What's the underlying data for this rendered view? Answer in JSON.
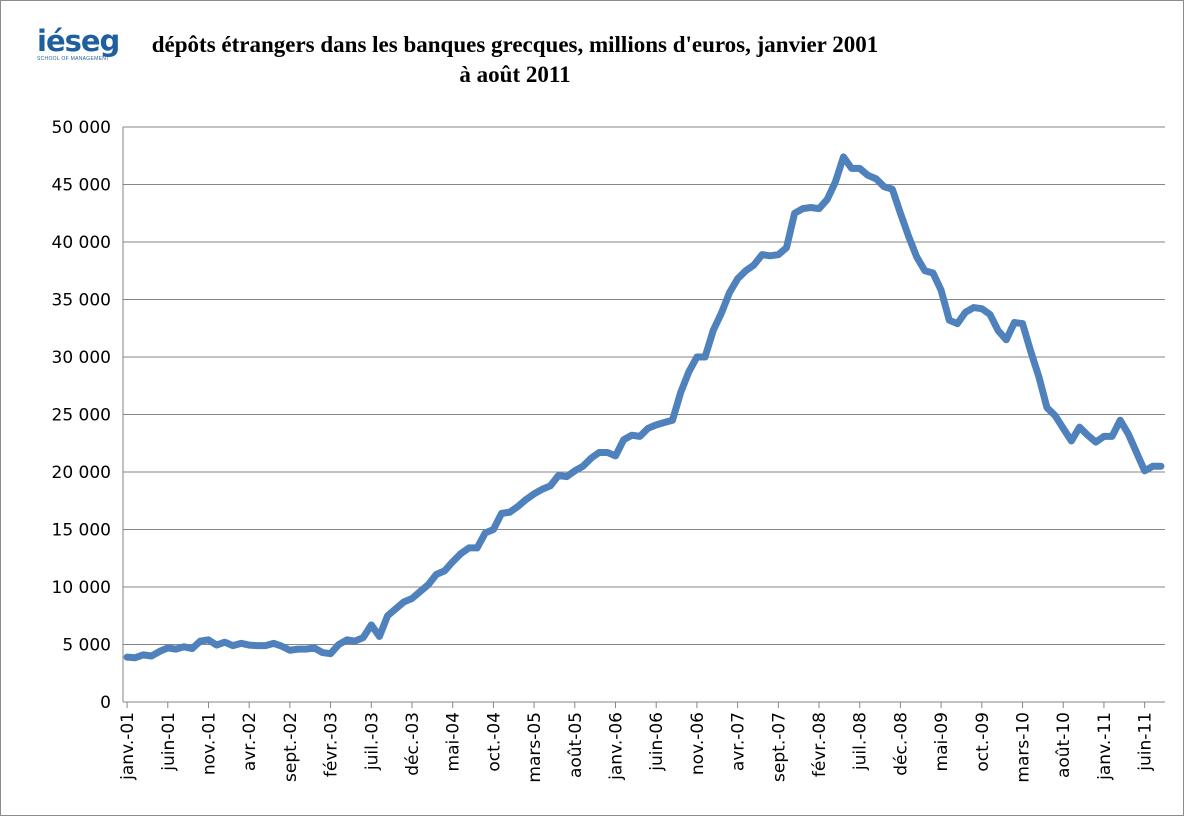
{
  "logo": {
    "name": "iéseg",
    "tagline": "SCHOOL OF MANAGEMENT"
  },
  "chart_data": {
    "type": "line",
    "title": "dépôts étrangers  dans les banques grecques, millions d'euros, janvier 2001 à août 2011",
    "categories": [
      "janv.-01",
      null,
      null,
      null,
      null,
      "juin-01",
      null,
      null,
      null,
      null,
      "nov.-01",
      null,
      null,
      null,
      null,
      "avr.-02",
      null,
      null,
      null,
      null,
      "sept.-02",
      null,
      null,
      null,
      null,
      "févr.-03",
      null,
      null,
      null,
      null,
      "juil.-03",
      null,
      null,
      null,
      null,
      "déc.-03",
      null,
      null,
      null,
      null,
      "mai-04",
      null,
      null,
      null,
      null,
      "oct.-04",
      null,
      null,
      null,
      null,
      "mars-05",
      null,
      null,
      null,
      null,
      "août-05",
      null,
      null,
      null,
      null,
      "janv.-06",
      null,
      null,
      null,
      null,
      "juin-06",
      null,
      null,
      null,
      null,
      "nov.-06",
      null,
      null,
      null,
      null,
      "avr.-07",
      null,
      null,
      null,
      null,
      "sept.-07",
      null,
      null,
      null,
      null,
      "févr.-08",
      null,
      null,
      null,
      null,
      "juil.-08",
      null,
      null,
      null,
      null,
      "déc.-08",
      null,
      null,
      null,
      null,
      "mai-09",
      null,
      null,
      null,
      null,
      "oct.-09",
      null,
      null,
      null,
      null,
      "mars-10",
      null,
      null,
      null,
      null,
      "août-10",
      null,
      null,
      null,
      null,
      "janv.-11",
      null,
      null,
      null,
      null,
      "juin-11",
      null,
      null
    ],
    "values": [
      3900,
      3850,
      4100,
      4000,
      4400,
      4700,
      4600,
      4800,
      4650,
      5300,
      5400,
      4950,
      5200,
      4900,
      5100,
      4950,
      4900,
      4900,
      5100,
      4850,
      4500,
      4600,
      4600,
      4700,
      4300,
      4200,
      5000,
      5400,
      5300,
      5600,
      6700,
      5700,
      7500,
      8100,
      8700,
      9000,
      9600,
      10200,
      11100,
      11400,
      12200,
      12900,
      13400,
      13400,
      14700,
      15000,
      16400,
      16500,
      17000,
      17600,
      18100,
      18500,
      18800,
      19700,
      19600,
      20100,
      20500,
      21200,
      21700,
      21700,
      21400,
      22800,
      23200,
      23100,
      23800,
      24100,
      24300,
      24500,
      26900,
      28700,
      30000,
      30000,
      32300,
      33800,
      35600,
      36800,
      37500,
      38000,
      38900,
      38800,
      38900,
      39500,
      42500,
      42900,
      43000,
      42900,
      43700,
      45200,
      47400,
      46400,
      46400,
      45800,
      45500,
      44800,
      44600,
      42500,
      40500,
      38700,
      37500,
      37300,
      35800,
      33200,
      32900,
      33900,
      34300,
      34200,
      33700,
      32300,
      31500,
      33000,
      32900,
      30500,
      28300,
      25600,
      24900,
      23800,
      22700,
      23900,
      23200,
      22600,
      23100,
      23100,
      24500,
      23300,
      21700,
      20100,
      20500,
      20500
    ],
    "color": "#4f81bd",
    "ylim": [
      0,
      50000
    ],
    "yticks": [
      0,
      {
        "value": 5000,
        "label": "5 000"
      },
      {
        "value": 10000,
        "label": "10 000"
      },
      {
        "value": 15000,
        "label": "15 000"
      },
      {
        "value": 20000,
        "label": "20 000"
      },
      {
        "value": 25000,
        "label": "25 000"
      },
      {
        "value": 30000,
        "label": "30 000"
      },
      {
        "value": 35000,
        "label": "35 000"
      },
      {
        "value": 40000,
        "label": "40 000"
      },
      {
        "value": 45000,
        "label": "45 000"
      },
      {
        "value": 50000,
        "label": "50 000"
      }
    ],
    "grid": true
  }
}
